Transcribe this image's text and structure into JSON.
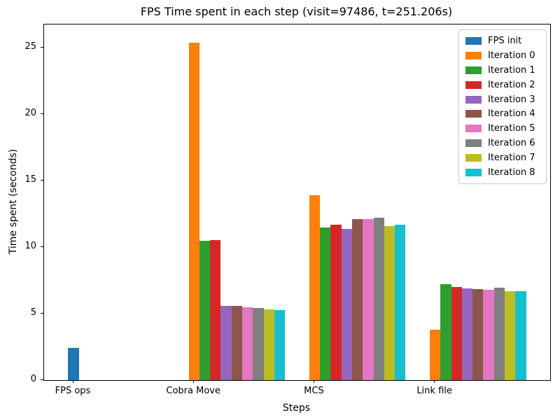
{
  "chart_data": {
    "type": "bar",
    "title": "FPS Time spent in each step (visit=97486, t=251.206s)",
    "xlabel": "Steps",
    "ylabel": "Time spent (seconds)",
    "categories": [
      "FPS ops",
      "Cobra Move",
      "MCS",
      "Link file"
    ],
    "series": [
      {
        "name": "FPS init",
        "color": "#1f77b4",
        "values": [
          2.4,
          0,
          0,
          0
        ]
      },
      {
        "name": "Iteration 0",
        "color": "#ff7f0e",
        "values": [
          0,
          25.4,
          13.9,
          3.8
        ]
      },
      {
        "name": "Iteration 1",
        "color": "#2ca02c",
        "values": [
          0,
          10.5,
          11.5,
          7.2
        ]
      },
      {
        "name": "Iteration 2",
        "color": "#d62728",
        "values": [
          0,
          10.55,
          11.7,
          7.0
        ]
      },
      {
        "name": "Iteration 3",
        "color": "#9467bd",
        "values": [
          0,
          5.6,
          11.35,
          6.9
        ]
      },
      {
        "name": "Iteration 4",
        "color": "#8c564b",
        "values": [
          0,
          5.6,
          12.1,
          6.85
        ]
      },
      {
        "name": "Iteration 5",
        "color": "#e377c2",
        "values": [
          0,
          5.5,
          12.1,
          6.8
        ]
      },
      {
        "name": "Iteration 6",
        "color": "#7f7f7f",
        "values": [
          0,
          5.45,
          12.2,
          6.95
        ]
      },
      {
        "name": "Iteration 7",
        "color": "#bcbd22",
        "values": [
          0,
          5.3,
          11.6,
          6.7
        ]
      },
      {
        "name": "Iteration 8",
        "color": "#17becf",
        "values": [
          0,
          5.25,
          11.7,
          6.7
        ]
      }
    ],
    "yticks": [
      0,
      5,
      10,
      15,
      20,
      25
    ],
    "ylim": [
      0,
      26.75
    ],
    "grid": false,
    "legend_position": "upper right",
    "background_color": "#ffffff",
    "text_color": "#000000"
  }
}
